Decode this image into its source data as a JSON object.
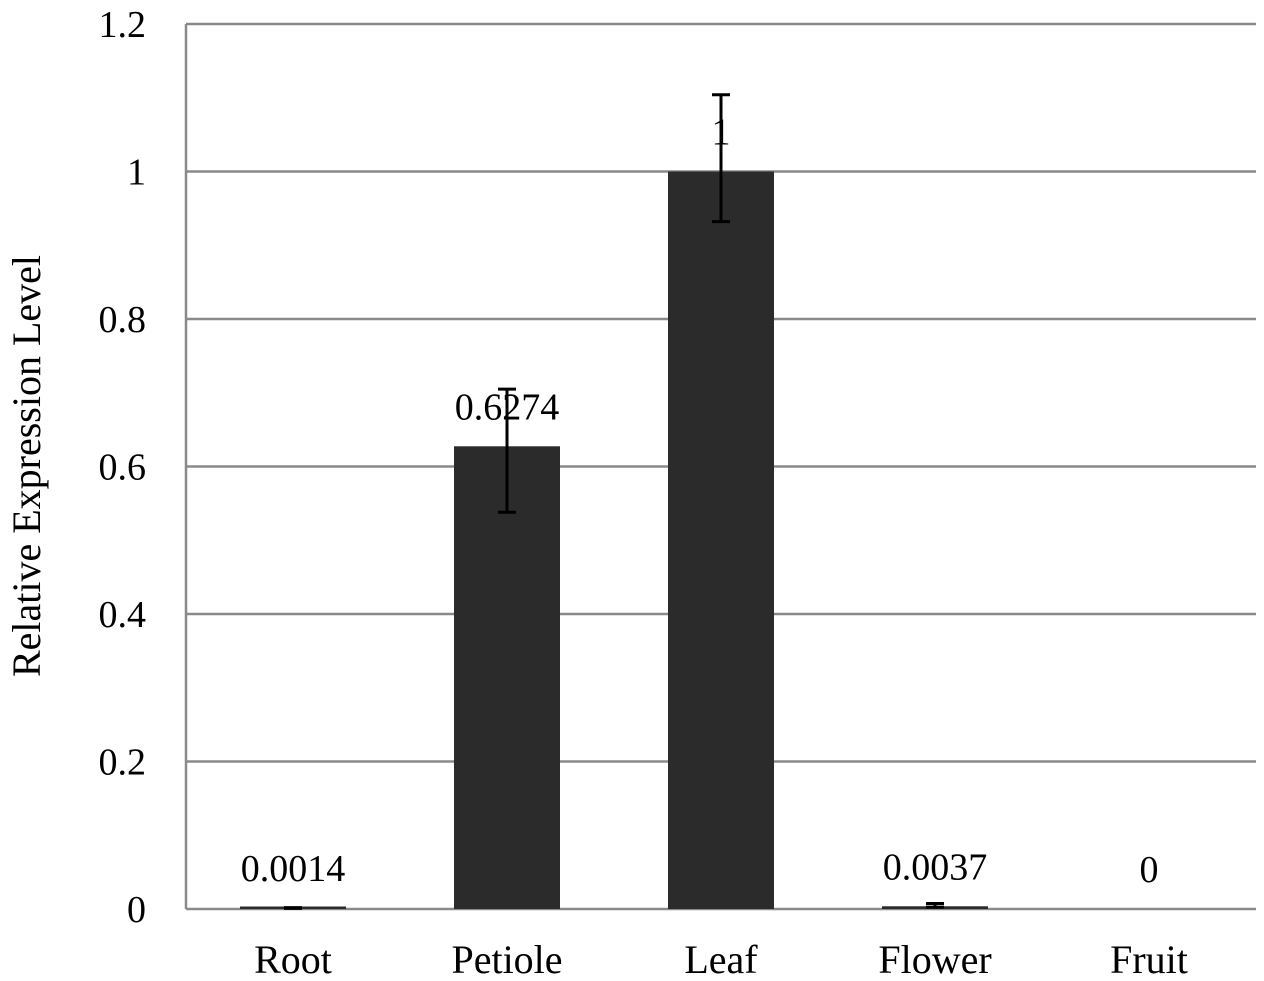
{
  "chart_data": {
    "type": "bar",
    "title": "",
    "xlabel": "",
    "ylabel": "Relative Expression Level",
    "categories": [
      "Root",
      "Petiole",
      "Leaf",
      "Flower",
      "Fruit"
    ],
    "values": [
      0.0014,
      0.6274,
      1,
      0.0037,
      0
    ],
    "error_bars": [
      {
        "low": 0.0009,
        "high": 0.0019
      },
      {
        "low": 0.538,
        "high": 0.705
      },
      {
        "low": 0.932,
        "high": 1.104
      },
      {
        "low": 0.0025,
        "high": 0.0075
      },
      null
    ],
    "data_labels": [
      "0.0014",
      "0.6274",
      "1",
      "0.0037",
      "0"
    ],
    "ylim": [
      0,
      1.2
    ],
    "yticks": [
      "0",
      "0.2",
      "0.4",
      "0.6",
      "0.8",
      "1",
      "1.2"
    ],
    "grid": true,
    "legend": "none",
    "colors": {
      "bar": "#2b2b2b",
      "grid": "#8a8a8a",
      "axis": "#8a8a8a",
      "error": "#000000"
    }
  }
}
